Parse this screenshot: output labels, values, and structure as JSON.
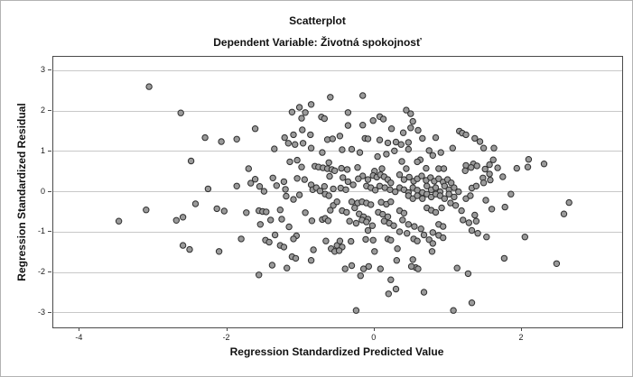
{
  "chart_data": {
    "type": "scatter",
    "title": "Scatterplot",
    "subtitle": "Dependent Variable: Životná spokojnosť",
    "xlabel": "Regression Standardized Predicted Value",
    "ylabel": "Regression Standardized Residual",
    "xlim": [
      -4.36,
      3.36
    ],
    "ylim": [
      -3.36,
      3.34
    ],
    "x_ticks": [
      -4,
      -2,
      0,
      2
    ],
    "y_ticks": [
      3,
      2,
      1,
      0,
      -1,
      -2,
      -3
    ],
    "grid": "horizontal-only",
    "legend": "none",
    "marker": {
      "shape": "circle",
      "fill": "#9a9a9a",
      "stroke": "#2e2e2e",
      "radius_px": 3.2
    },
    "colors": {
      "gridline": "#c8c8c8",
      "frame": "#4a4a4a",
      "text": "#111111",
      "background": "#ffffff"
    },
    "points": [
      [
        -3.06,
        2.6
      ],
      [
        -2.63,
        1.95
      ],
      [
        -0.6,
        2.34
      ],
      [
        -1.12,
        1.97
      ],
      [
        -1.02,
        2.09
      ],
      [
        -0.94,
        1.96
      ],
      [
        -0.86,
        2.16
      ],
      [
        -0.99,
        1.82
      ],
      [
        -0.72,
        1.85
      ],
      [
        -0.68,
        1.81
      ],
      [
        -1.62,
        1.56
      ],
      [
        -2.3,
        1.34
      ],
      [
        -2.08,
        1.24
      ],
      [
        -1.87,
        1.3
      ],
      [
        -1.22,
        1.34
      ],
      [
        -1.1,
        1.41
      ],
      [
        -1.17,
        1.2
      ],
      [
        -1.08,
        1.17
      ],
      [
        -0.98,
        1.53
      ],
      [
        -0.87,
        1.41
      ],
      [
        -0.97,
        1.2
      ],
      [
        -0.64,
        1.29
      ],
      [
        -0.57,
        1.31
      ],
      [
        -0.16,
        2.38
      ],
      [
        -0.36,
        1.96
      ],
      [
        0.43,
        2.02
      ],
      [
        0.49,
        1.93
      ],
      [
        0.07,
        1.86
      ],
      [
        -0.02,
        1.76
      ],
      [
        0.12,
        1.8
      ],
      [
        0.52,
        1.74
      ],
      [
        -0.16,
        1.65
      ],
      [
        -0.36,
        1.64
      ],
      [
        0.23,
        1.56
      ],
      [
        0.49,
        1.58
      ],
      [
        0.39,
        1.46
      ],
      [
        0.59,
        1.52
      ],
      [
        -0.47,
        1.38
      ],
      [
        -0.13,
        1.32
      ],
      [
        -0.09,
        1.31
      ],
      [
        0.07,
        1.28
      ],
      [
        0.18,
        1.21
      ],
      [
        0.29,
        1.23
      ],
      [
        0.36,
        1.17
      ],
      [
        0.46,
        1.22
      ],
      [
        0.65,
        1.32
      ],
      [
        0.83,
        1.34
      ],
      [
        1.15,
        1.5
      ],
      [
        1.19,
        1.45
      ],
      [
        1.24,
        1.41
      ],
      [
        1.36,
        1.32
      ],
      [
        1.43,
        1.24
      ],
      [
        1.48,
        1.08
      ],
      [
        1.62,
        1.08
      ],
      [
        1.61,
        0.79
      ],
      [
        1.56,
        0.67
      ],
      [
        1.67,
        0.59
      ],
      [
        1.5,
        0.56
      ],
      [
        2.09,
        0.8
      ],
      [
        2.08,
        0.61
      ],
      [
        2.3,
        0.69
      ],
      [
        1.93,
        0.58
      ],
      [
        1.56,
        0.44
      ],
      [
        1.47,
        0.34
      ],
      [
        1.57,
        0.29
      ],
      [
        1.74,
        0.37
      ],
      [
        1.48,
        0.22
      ],
      [
        1.85,
        -0.06
      ],
      [
        1.51,
        -0.21
      ],
      [
        1.59,
        -0.43
      ],
      [
        1.77,
        -0.38
      ],
      [
        2.64,
        -0.27
      ],
      [
        2.57,
        -0.55
      ],
      [
        1.52,
        -1.12
      ],
      [
        2.04,
        -1.12
      ],
      [
        -2.49,
        0.76
      ],
      [
        -3.1,
        -0.45
      ],
      [
        -3.47,
        -0.73
      ],
      [
        -2.69,
        -0.71
      ],
      [
        -2.6,
        -0.63
      ],
      [
        -2.43,
        -0.3
      ],
      [
        -1.36,
        1.06
      ],
      [
        -0.86,
        1.08
      ],
      [
        -0.71,
        0.97
      ],
      [
        -1.15,
        0.74
      ],
      [
        -1.05,
        0.78
      ],
      [
        -0.99,
        0.61
      ],
      [
        -0.81,
        0.63
      ],
      [
        -0.76,
        0.61
      ],
      [
        -0.7,
        0.59
      ],
      [
        -0.64,
        0.57
      ],
      [
        -0.62,
        0.72
      ],
      [
        -0.58,
        0.55
      ],
      [
        -0.54,
        0.52
      ],
      [
        -1.71,
        0.57
      ],
      [
        -1.87,
        0.14
      ],
      [
        -1.68,
        0.21
      ],
      [
        -1.62,
        0.31
      ],
      [
        -1.56,
        0.13
      ],
      [
        -1.5,
        0.01
      ],
      [
        -1.38,
        0.34
      ],
      [
        -1.33,
        0.15
      ],
      [
        -1.23,
        0.25
      ],
      [
        -1.21,
        0.06
      ],
      [
        -1.05,
        0.33
      ],
      [
        -0.95,
        0.3
      ],
      [
        -1.02,
        -0.08
      ],
      [
        -1.2,
        -0.11
      ],
      [
        -1.1,
        -0.19
      ],
      [
        -0.86,
        0.17
      ],
      [
        -0.84,
        0.05
      ],
      [
        -0.79,
        0.1
      ],
      [
        -0.74,
        0.02
      ],
      [
        -0.68,
        0.13
      ],
      [
        -0.67,
        -0.06
      ],
      [
        -0.62,
        -0.1
      ],
      [
        -0.56,
        0.07
      ],
      [
        -0.61,
        0.38
      ],
      [
        -2.26,
        0.07
      ],
      [
        -2.14,
        -0.42
      ],
      [
        -2.04,
        -0.48
      ],
      [
        -1.74,
        -0.52
      ],
      [
        -1.57,
        -0.47
      ],
      [
        -1.52,
        -0.49
      ],
      [
        -1.47,
        -0.5
      ],
      [
        -1.28,
        -0.45
      ],
      [
        -1.41,
        -0.7
      ],
      [
        -1.55,
        -0.81
      ],
      [
        -1.26,
        -0.68
      ],
      [
        -1.16,
        -0.87
      ],
      [
        -0.94,
        -0.52
      ],
      [
        -0.85,
        -0.72
      ],
      [
        -0.71,
        -0.69
      ],
      [
        -0.67,
        -0.66
      ],
      [
        -0.63,
        -0.72
      ],
      [
        -0.56,
        -0.34
      ],
      [
        -0.51,
        -0.25
      ],
      [
        -0.6,
        -0.46
      ],
      [
        -1.35,
        -1.07
      ],
      [
        -1.06,
        -1.09
      ],
      [
        -0.44,
        1.04
      ],
      [
        -0.31,
        1.05
      ],
      [
        -0.2,
        0.97
      ],
      [
        0.04,
        0.87
      ],
      [
        0.16,
        0.93
      ],
      [
        0.27,
        1.01
      ],
      [
        0.46,
        1.05
      ],
      [
        0.62,
        0.79
      ],
      [
        0.74,
        1.02
      ],
      [
        0.79,
        0.9
      ],
      [
        0.9,
        0.97
      ],
      [
        1.06,
        1.08
      ],
      [
        1.34,
        0.69
      ],
      [
        1.24,
        0.65
      ],
      [
        -0.45,
        0.58
      ],
      [
        -0.37,
        0.55
      ],
      [
        -0.23,
        0.6
      ],
      [
        0.0,
        0.51
      ],
      [
        0.1,
        0.57
      ],
      [
        0.37,
        0.75
      ],
      [
        0.43,
        0.57
      ],
      [
        0.58,
        0.74
      ],
      [
        0.7,
        0.58
      ],
      [
        0.87,
        0.57
      ],
      [
        0.94,
        0.57
      ],
      [
        1.23,
        0.52
      ],
      [
        1.31,
        0.6
      ],
      [
        1.39,
        0.64
      ],
      [
        -0.16,
        0.39
      ],
      [
        -0.09,
        0.3
      ],
      [
        -0.02,
        0.4
      ],
      [
        0.03,
        0.36
      ],
      [
        0.08,
        0.42
      ],
      [
        0.13,
        0.37
      ],
      [
        0.18,
        0.3
      ],
      [
        0.22,
        0.22
      ],
      [
        0.34,
        0.42
      ],
      [
        0.4,
        0.3
      ],
      [
        0.47,
        0.36
      ],
      [
        0.53,
        0.26
      ],
      [
        0.58,
        0.32
      ],
      [
        0.64,
        0.39
      ],
      [
        0.7,
        0.28
      ],
      [
        0.76,
        0.35
      ],
      [
        0.81,
        0.26
      ],
      [
        0.87,
        0.32
      ],
      [
        0.93,
        0.24
      ],
      [
        0.99,
        0.3
      ],
      [
        1.04,
        0.22
      ],
      [
        -0.43,
        0.35
      ],
      [
        -0.36,
        0.25
      ],
      [
        -0.29,
        0.17
      ],
      [
        -0.22,
        0.32
      ],
      [
        -0.46,
        0.09
      ],
      [
        -0.39,
        0.05
      ],
      [
        -0.11,
        0.14
      ],
      [
        -0.05,
        0.1
      ],
      [
        0.01,
        0.04
      ],
      [
        0.07,
        0.14
      ],
      [
        0.14,
        0.1
      ],
      [
        0.21,
        0.05
      ],
      [
        0.28,
        0.0
      ],
      [
        0.34,
        0.1
      ],
      [
        0.4,
        0.05
      ],
      [
        0.46,
        -0.02
      ],
      [
        0.52,
        0.1
      ],
      [
        0.58,
        0.04
      ],
      [
        0.65,
        -0.02
      ],
      [
        0.71,
        0.14
      ],
      [
        0.77,
        0.05
      ],
      [
        0.83,
        0.1
      ],
      [
        0.89,
        0.0
      ],
      [
        0.95,
        0.14
      ],
      [
        1.01,
        0.05
      ],
      [
        1.08,
        0.1
      ],
      [
        1.14,
        0.0
      ],
      [
        1.32,
        0.09
      ],
      [
        1.38,
        0.14
      ],
      [
        -0.31,
        -0.25
      ],
      [
        -0.23,
        -0.28
      ],
      [
        -0.17,
        -0.25
      ],
      [
        -0.11,
        -0.28
      ],
      [
        -0.05,
        -0.32
      ],
      [
        0.09,
        -0.26
      ],
      [
        0.16,
        -0.31
      ],
      [
        0.22,
        -0.25
      ],
      [
        0.46,
        -0.1
      ],
      [
        0.52,
        -0.17
      ],
      [
        0.58,
        -0.1
      ],
      [
        0.65,
        -0.17
      ],
      [
        0.71,
        -0.06
      ],
      [
        0.77,
        -0.13
      ],
      [
        0.83,
        -0.06
      ],
      [
        0.89,
        -0.1
      ],
      [
        0.95,
        -0.17
      ],
      [
        1.01,
        -0.06
      ],
      [
        1.08,
        -0.13
      ],
      [
        1.24,
        -0.17
      ],
      [
        1.3,
        -0.1
      ],
      [
        -0.44,
        -0.47
      ],
      [
        -0.38,
        -0.51
      ],
      [
        -0.27,
        -0.4
      ],
      [
        -0.21,
        -0.55
      ],
      [
        -0.15,
        -0.62
      ],
      [
        -0.09,
        -0.68
      ],
      [
        0.05,
        -0.51
      ],
      [
        0.11,
        -0.56
      ],
      [
        0.18,
        -0.62
      ],
      [
        0.34,
        -0.47
      ],
      [
        0.4,
        -0.53
      ],
      [
        0.71,
        -0.4
      ],
      [
        0.77,
        -0.46
      ],
      [
        0.83,
        -0.51
      ],
      [
        0.91,
        -0.4
      ],
      [
        1.03,
        -0.28
      ],
      [
        1.1,
        -0.34
      ],
      [
        1.18,
        -0.47
      ],
      [
        1.36,
        -0.58
      ],
      [
        -0.34,
        -0.73
      ],
      [
        -0.25,
        -0.78
      ],
      [
        -0.17,
        -0.7
      ],
      [
        -0.11,
        -0.75
      ],
      [
        -0.03,
        -0.84
      ],
      [
        0.13,
        -0.73
      ],
      [
        0.2,
        -0.78
      ],
      [
        0.26,
        -0.84
      ],
      [
        0.38,
        -0.7
      ],
      [
        0.46,
        -0.81
      ],
      [
        0.54,
        -0.86
      ],
      [
        0.63,
        -0.92
      ],
      [
        0.87,
        -0.81
      ],
      [
        0.93,
        -0.86
      ],
      [
        1.2,
        -0.7
      ],
      [
        1.28,
        -0.77
      ],
      [
        1.38,
        -0.73
      ],
      [
        -0.09,
        -0.96
      ],
      [
        0.34,
        -0.99
      ],
      [
        0.44,
        -1.03
      ],
      [
        0.67,
        -1.07
      ],
      [
        0.79,
        -1.01
      ],
      [
        0.87,
        -1.08
      ],
      [
        1.32,
        -0.96
      ],
      [
        1.4,
        -1.03
      ],
      [
        -2.6,
        -1.33
      ],
      [
        -2.51,
        -1.43
      ],
      [
        -1.81,
        -1.17
      ],
      [
        -2.11,
        -1.48
      ],
      [
        -1.48,
        -1.2
      ],
      [
        -1.43,
        -1.25
      ],
      [
        -1.28,
        -1.33
      ],
      [
        -1.23,
        -1.37
      ],
      [
        -1.1,
        -1.17
      ],
      [
        -1.12,
        -1.61
      ],
      [
        -1.07,
        -1.65
      ],
      [
        -0.83,
        -1.44
      ],
      [
        -0.86,
        -1.7
      ],
      [
        -1.39,
        -1.82
      ],
      [
        -1.19,
        -1.89
      ],
      [
        -1.57,
        -2.06
      ],
      [
        -0.66,
        -1.22
      ],
      [
        -0.59,
        -1.41
      ],
      [
        -0.54,
        -1.48
      ],
      [
        -0.51,
        -1.33
      ],
      [
        -0.47,
        -1.22
      ],
      [
        -0.32,
        -1.23
      ],
      [
        -0.44,
        -1.37
      ],
      [
        -0.48,
        -1.46
      ],
      [
        -0.12,
        -1.18
      ],
      [
        -0.02,
        -1.2
      ],
      [
        0.18,
        -1.17
      ],
      [
        0.22,
        -1.2
      ],
      [
        0.0,
        -1.48
      ],
      [
        0.31,
        -1.41
      ],
      [
        0.53,
        -1.17
      ],
      [
        0.58,
        -1.22
      ],
      [
        0.74,
        -1.19
      ],
      [
        0.79,
        -1.28
      ],
      [
        0.93,
        -1.14
      ],
      [
        0.78,
        -1.48
      ],
      [
        0.3,
        -1.7
      ],
      [
        0.52,
        -1.68
      ],
      [
        0.56,
        -1.88
      ],
      [
        0.59,
        -1.91
      ],
      [
        0.5,
        -1.85
      ],
      [
        -0.31,
        -1.83
      ],
      [
        -0.08,
        -1.85
      ],
      [
        -0.15,
        -1.91
      ],
      [
        -0.4,
        -1.91
      ],
      [
        -0.19,
        -2.08
      ],
      [
        0.08,
        -1.91
      ],
      [
        0.22,
        -2.18
      ],
      [
        0.29,
        -2.41
      ],
      [
        0.19,
        -2.53
      ],
      [
        0.67,
        -2.49
      ],
      [
        1.12,
        -1.89
      ],
      [
        1.27,
        -2.03
      ],
      [
        1.32,
        -2.75
      ],
      [
        1.07,
        -2.94
      ],
      [
        -0.25,
        -2.94
      ],
      [
        1.76,
        -1.65
      ],
      [
        2.47,
        -1.78
      ]
    ]
  }
}
